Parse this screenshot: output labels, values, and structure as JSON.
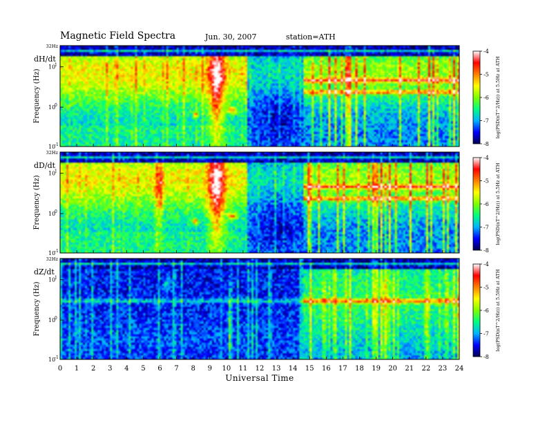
{
  "header": {
    "title": "Magnetic  Field  Spectra",
    "date": "Jun. 30, 2007",
    "station": "station=ATH"
  },
  "chart_data": {
    "type": "heatmap",
    "xlabel": "Universal Time",
    "x_range": [
      0,
      24
    ],
    "x_ticks": [
      "0",
      "1",
      "2",
      "3",
      "4",
      "5",
      "6",
      "7",
      "8",
      "9",
      "10",
      "11",
      "12",
      "13",
      "14",
      "15",
      "16",
      "17",
      "18",
      "19",
      "20",
      "21",
      "22",
      "23",
      "24"
    ],
    "panels": [
      {
        "label": "dH/dt",
        "ylabel": "Frequency  (Hz)",
        "top_tick": "32Hz",
        "y_ticks": [
          "10",
          "10",
          "10"
        ],
        "y_tick_exponents": [
          "1",
          "0",
          "-1"
        ],
        "colorbar_label": "log(PSD(nT^2/Hz)) at 5.5Hz at ATH",
        "colorbar_ticks": [
          "-4",
          "-5",
          "-6",
          "-7",
          "-8"
        ],
        "colorbar_range": [
          -8,
          -4
        ]
      },
      {
        "label": "dD/dt",
        "ylabel": "Frequency  (Hz)",
        "top_tick": "32Hz",
        "y_ticks": [
          "10",
          "10",
          "10"
        ],
        "y_tick_exponents": [
          "1",
          "0",
          "-1"
        ],
        "colorbar_label": "log(PSD(nT^2/Hz)) at 5.5Hz at ATH",
        "colorbar_ticks": [
          "-4",
          "-5",
          "-6",
          "-7",
          "-8"
        ],
        "colorbar_range": [
          -8,
          -4
        ]
      },
      {
        "label": "dZ/dt",
        "ylabel": "Frequency  (Hz)",
        "top_tick": "32Hz",
        "y_ticks": [
          "10",
          "10",
          "10"
        ],
        "y_tick_exponents": [
          "1",
          "0",
          "-1"
        ],
        "colorbar_label": "log(PSD(nT^2/Hz)) at 5.5Hz at ATH",
        "colorbar_ticks": [
          "-4",
          "-5",
          "-6",
          "-7",
          "-8"
        ],
        "colorbar_range": [
          -8,
          -4
        ]
      }
    ],
    "colormap": [
      "#000050",
      "#0000ff",
      "#00b4ff",
      "#00ff80",
      "#80ff00",
      "#ffff00",
      "#ff8000",
      "#ff0000",
      "#ffffff"
    ]
  }
}
